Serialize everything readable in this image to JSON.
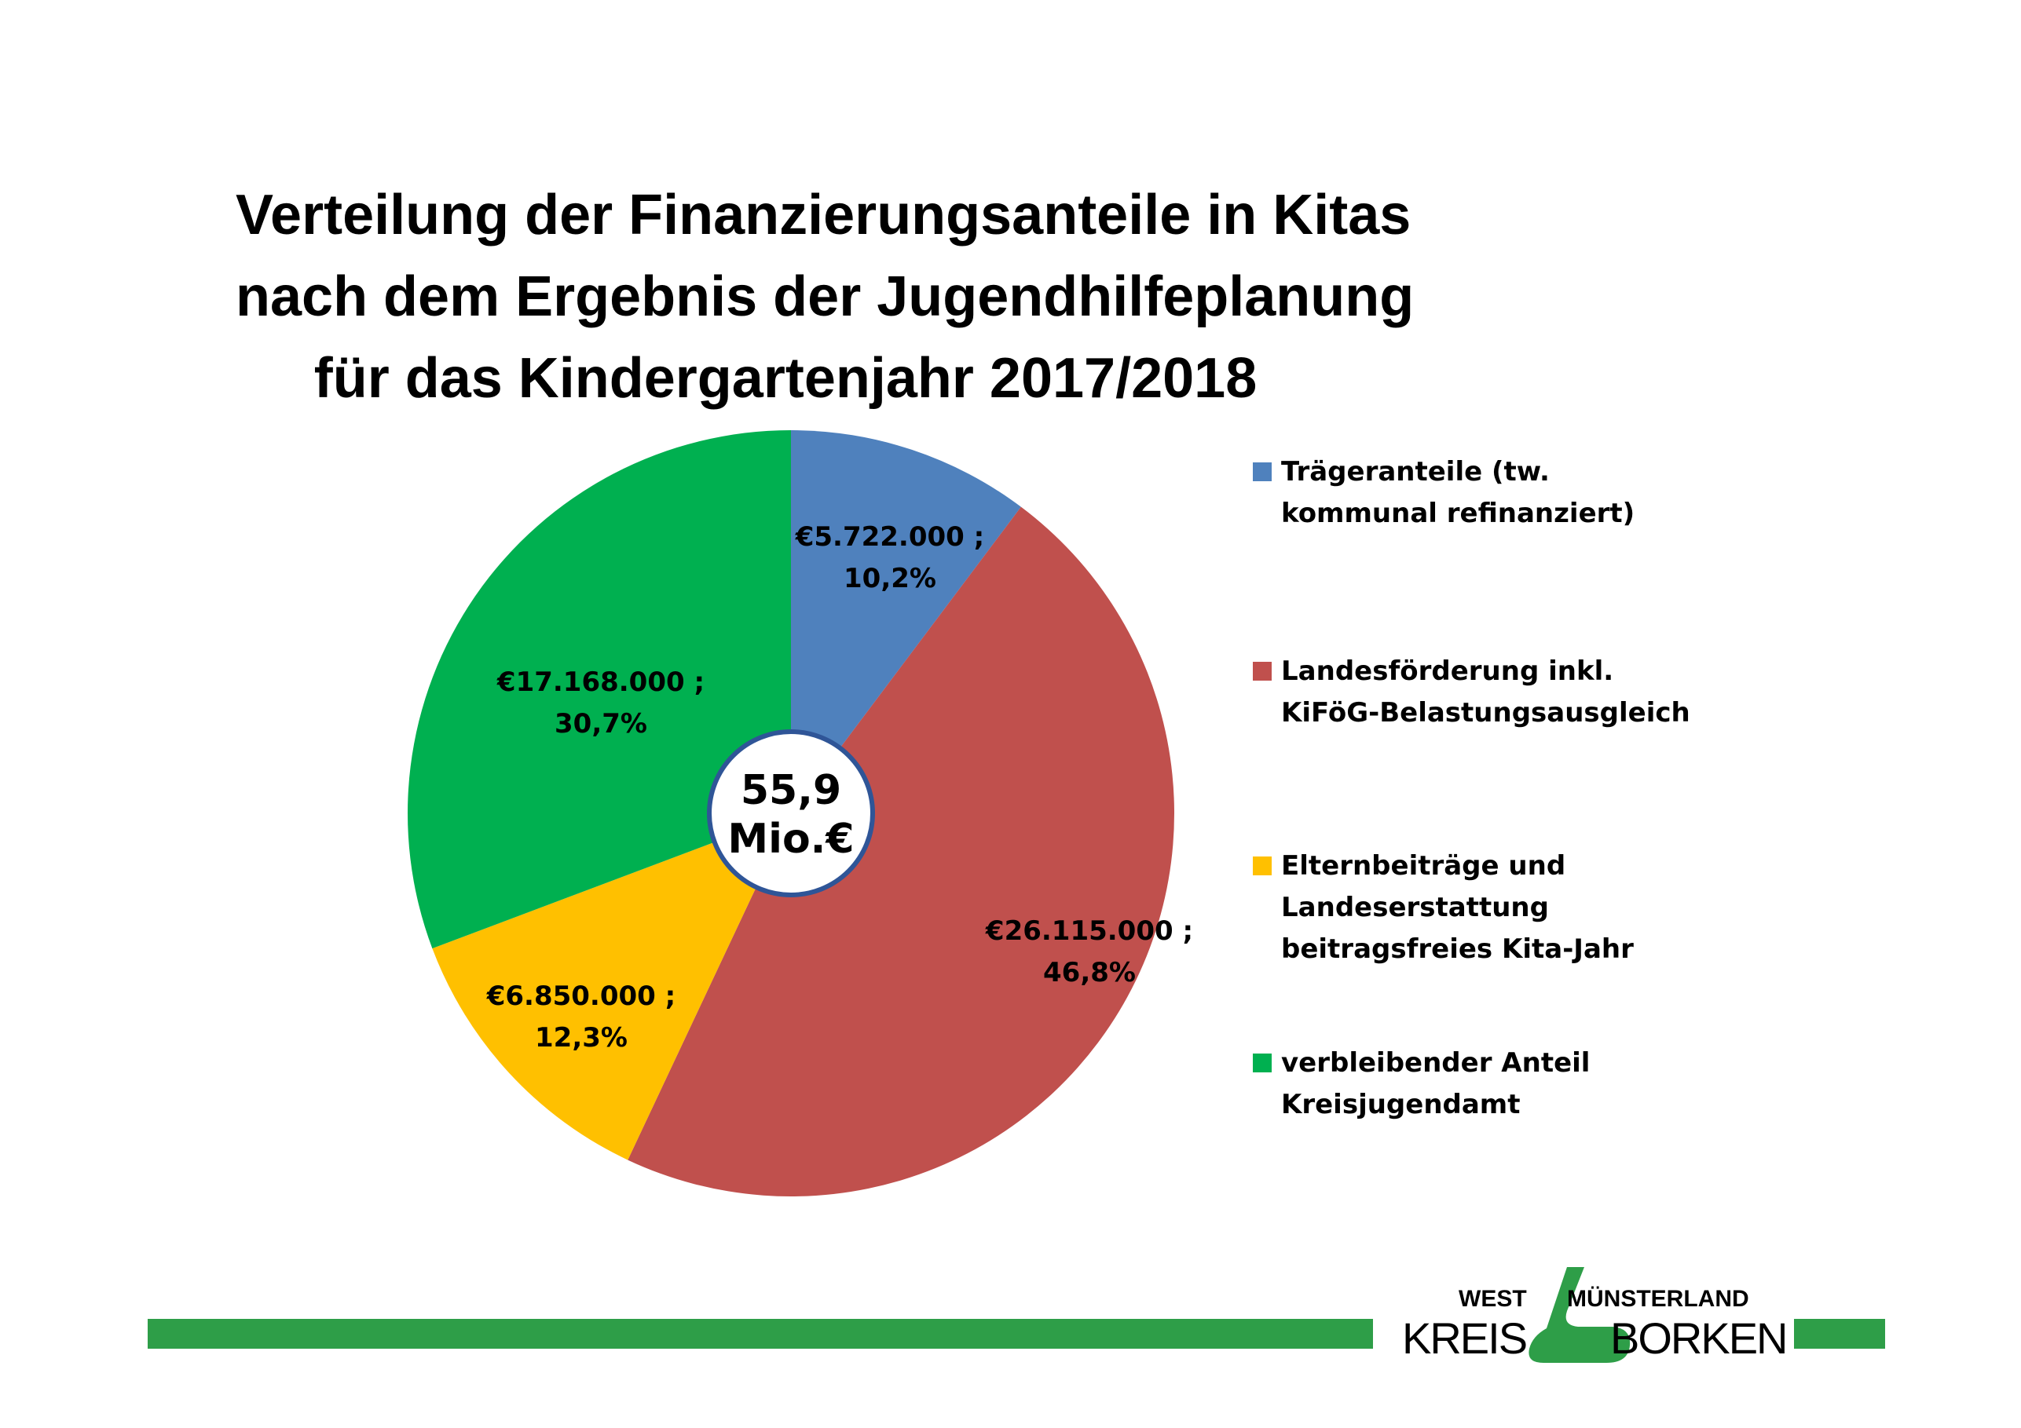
{
  "title_lines": [
    "Verteilung der Finanzierungsanteile in Kitas",
    "nach dem Ergebnis der Jugendhilfeplanung",
    "für das Kindergartenjahr 2017/2018"
  ],
  "chart_data": {
    "type": "pie",
    "title": "Verteilung der Finanzierungsanteile in Kitas nach dem Ergebnis der Jugendhilfeplanung für das Kindergartenjahr 2017/2018",
    "center_label": [
      "55,9",
      "Mio.€"
    ],
    "slices": [
      {
        "name": "Trägeranteile (tw. kommunal refinanziert)",
        "value": 5722000,
        "percent": 10.2,
        "label_lines": [
          "€5.722.000 ;",
          "10,2%"
        ],
        "color": "#4f81bd"
      },
      {
        "name": "Landesförderung inkl. KiFöG-Belastungsausgleich",
        "value": 26115000,
        "percent": 46.8,
        "label_lines": [
          "€26.115.000 ;",
          "46,8%"
        ],
        "color": "#c0504d"
      },
      {
        "name": "Elternbeiträge und Landeserstattung beitragsfreies Kita-Jahr",
        "value": 6850000,
        "percent": 12.3,
        "label_lines": [
          "€6.850.000 ;",
          "12,3%"
        ],
        "color": "#ffc000"
      },
      {
        "name": "verbleibender Anteil Kreisjugendamt",
        "value": 17168000,
        "percent": 30.7,
        "label_lines": [
          "€17.168.000 ;",
          "30,7%"
        ],
        "color": "#00b050"
      }
    ],
    "legend_position": "right"
  },
  "legend": [
    {
      "text": "Trägeranteile (tw.\nkommunal refinanziert)",
      "color": "#4f81bd"
    },
    {
      "text": "Landesförderung inkl.\nKiFöG-Belastungsausgleich",
      "color": "#c0504d"
    },
    {
      "text": "Elternbeiträge und\nLandeserstattung\nbeitragsfreies Kita-Jahr",
      "color": "#ffc000"
    },
    {
      "text": "verbleibender Anteil\nKreisjugendamt",
      "color": "#00b050"
    }
  ],
  "logo": {
    "west": "WEST",
    "muensterland": "MÜNSTERLAND",
    "kreis": "KREIS",
    "borken": "BORKEN"
  },
  "colors": {
    "footer_bar": "#2e9e48",
    "center_ring": "#2f5597"
  }
}
